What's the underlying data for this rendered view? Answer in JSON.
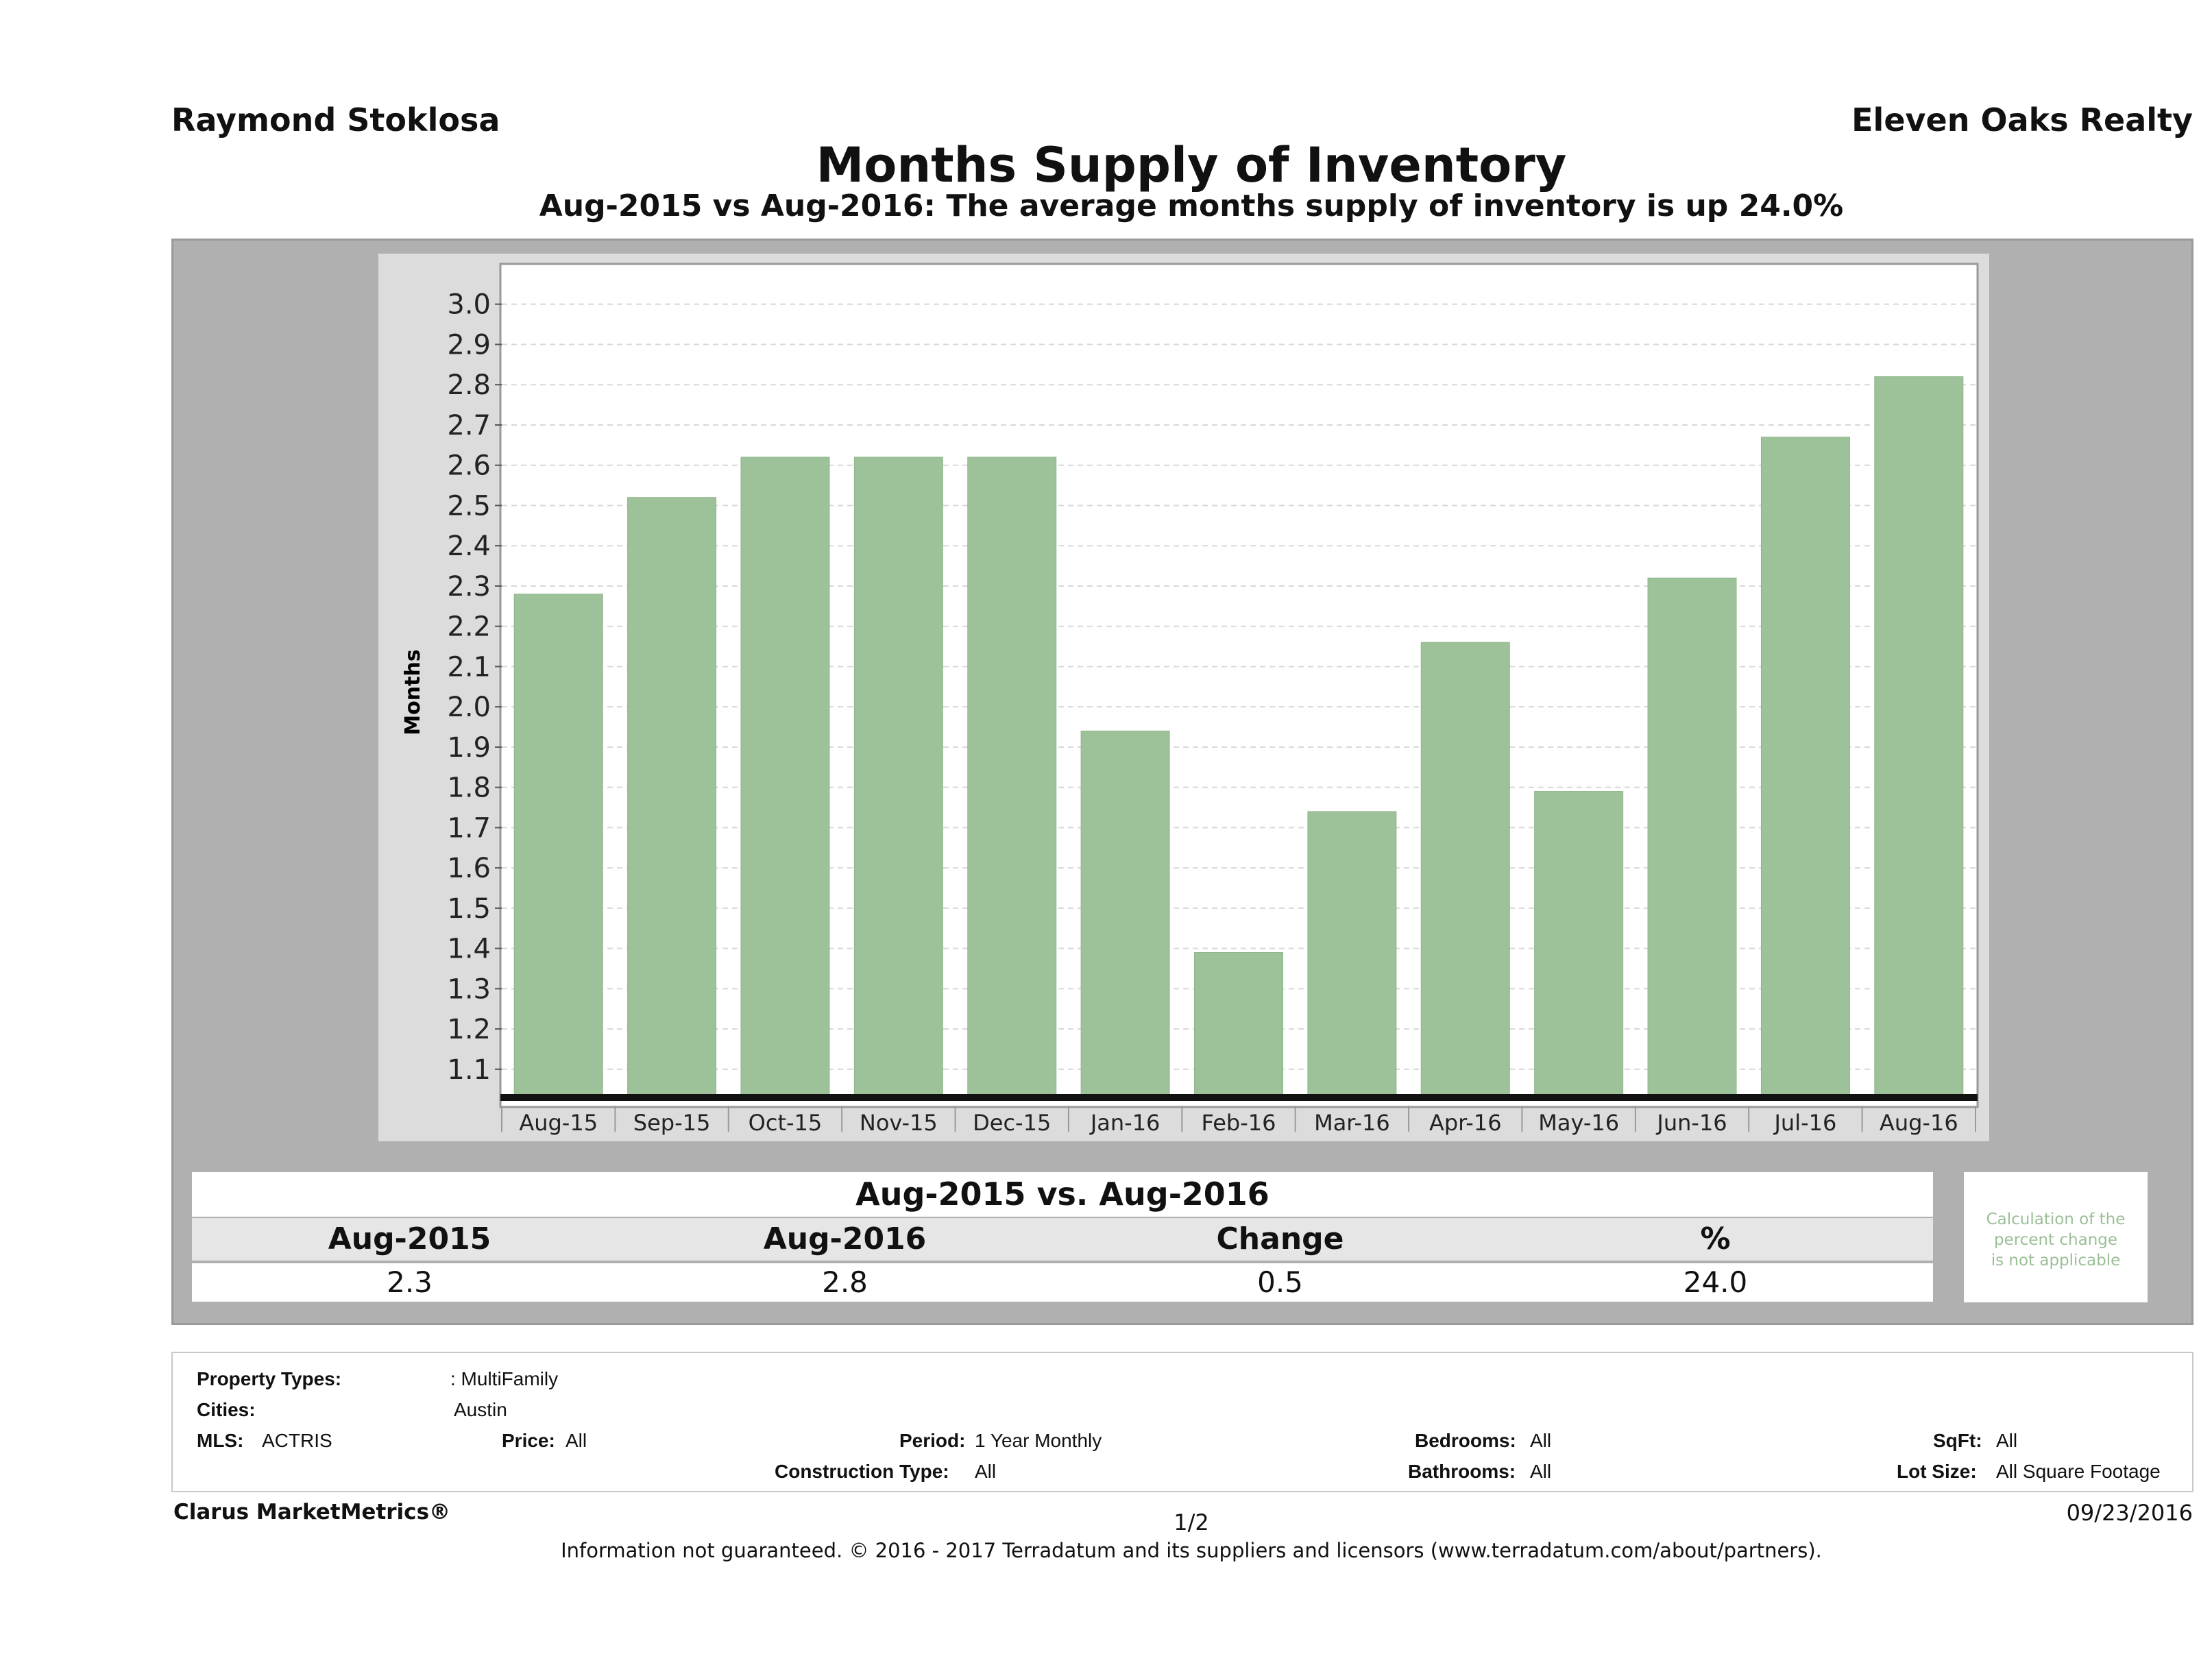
{
  "header": {
    "agent": "Raymond Stoklosa",
    "company": "Eleven Oaks Realty"
  },
  "chart_data": {
    "type": "bar",
    "title": "Months Supply of Inventory",
    "subtitle": "Aug-2015 vs Aug-2016: The average months supply of inventory is up 24.0%",
    "xlabel": "",
    "ylabel": "Months",
    "ylim": [
      1.03,
      3.1
    ],
    "yticks": [
      "1.1",
      "1.2",
      "1.3",
      "1.4",
      "1.5",
      "1.6",
      "1.7",
      "1.8",
      "1.9",
      "2.0",
      "2.1",
      "2.2",
      "2.3",
      "2.4",
      "2.5",
      "2.6",
      "2.7",
      "2.8",
      "2.9",
      "3.0"
    ],
    "categories": [
      "Aug-15",
      "Sep-15",
      "Oct-15",
      "Nov-15",
      "Dec-15",
      "Jan-16",
      "Feb-16",
      "Mar-16",
      "Apr-16",
      "May-16",
      "Jun-16",
      "Jul-16",
      "Aug-16"
    ],
    "values": [
      2.28,
      2.52,
      2.62,
      2.62,
      2.62,
      1.94,
      1.39,
      1.74,
      2.16,
      1.79,
      2.32,
      2.67,
      2.82
    ],
    "bar_color": "#9dc29a",
    "grid": true
  },
  "summary": {
    "heading": "Aug-2015 vs. Aug-2016",
    "labels": [
      "Aug-2015",
      "Aug-2016",
      "Change",
      "%"
    ],
    "values": [
      "2.3",
      "2.8",
      "0.5",
      "24.0"
    ],
    "note_lines": [
      "Calculation of the",
      "percent change",
      "is not applicable"
    ]
  },
  "filters": {
    "property_types_label": "Property Types:",
    "property_types_value": ": MultiFamily",
    "cities_label": "Cities:",
    "cities_value": "Austin",
    "mls_label": "MLS:",
    "mls_value": "ACTRIS",
    "price_label": "Price:",
    "price_value": "All",
    "period_label": "Period:",
    "period_value": "1 Year Monthly",
    "construction_label": "Construction Type:",
    "construction_value": "All",
    "bedrooms_label": "Bedrooms:",
    "bedrooms_value": "All",
    "bathrooms_label": "Bathrooms:",
    "bathrooms_value": "All",
    "sqft_label": "SqFt:",
    "sqft_value": "All",
    "lotsize_label": "Lot Size:",
    "lotsize_value": "All Square Footage"
  },
  "footer": {
    "brand": "Clarus MarketMetrics®",
    "page": "1/2",
    "date": "09/23/2016",
    "disclaimer": "Information not guaranteed. © 2016 - 2017 Terradatum and its suppliers and licensors (www.terradatum.com/about/partners)."
  }
}
